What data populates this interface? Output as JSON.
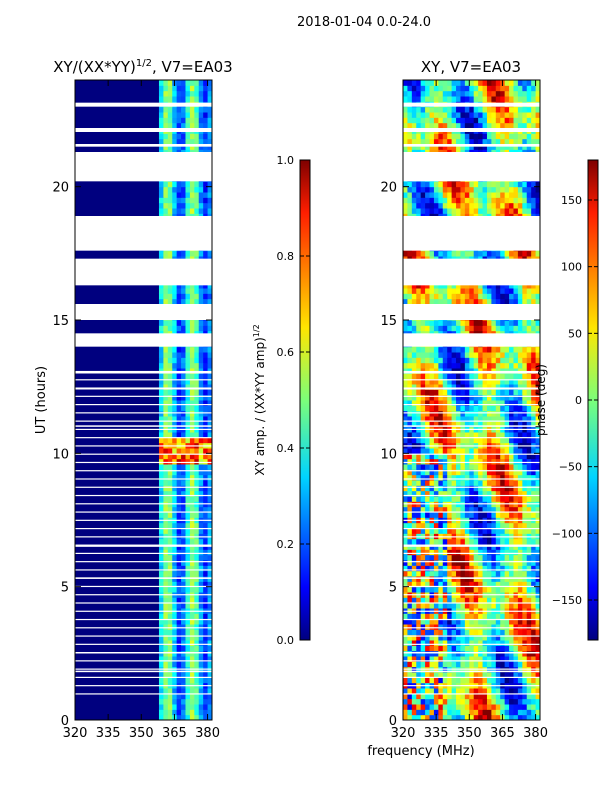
{
  "figure": {
    "suptitle": "2018-01-04 0.0-24.0"
  },
  "chart_data": [
    {
      "type": "heatmap",
      "id": "left",
      "title": "XY/(XX*YY)",
      "title_sup": "1/2",
      "title_suffix": ", V7=EA03",
      "xlabel": "",
      "ylabel": "UT (hours)",
      "xlim": [
        320,
        382
      ],
      "ylim": [
        0,
        24
      ],
      "xticks": [
        320,
        335,
        350,
        365,
        380
      ],
      "yticks": [
        0,
        5,
        10,
        15,
        20
      ],
      "colorbar": {
        "label": "XY amp. / (XX*YY amp)",
        "label_sup": "1/2",
        "range": [
          0.0,
          1.0
        ],
        "ticks": [
          "0.0",
          "0.2",
          "0.4",
          "0.6",
          "0.8",
          "1.0"
        ]
      },
      "colormap": "jet",
      "note": "Mostly low amplitude (~0.0) below 359 MHz; moderate amplitude (0.2-0.6) in bands 359-382 MHz; peak ~0.9 near 9.7-10.5 UT in 360-380 MHz."
    },
    {
      "type": "heatmap",
      "id": "right",
      "title": "XY, V7=EA03",
      "xlabel": "frequency (MHz)",
      "ylabel": "",
      "xlim": [
        320,
        382
      ],
      "ylim": [
        0,
        24
      ],
      "xticks": [
        320,
        335,
        350,
        365,
        380
      ],
      "yticks": [
        0,
        5,
        10,
        15,
        20
      ],
      "colorbar": {
        "label": "phase (deg)",
        "range": [
          -180,
          180
        ],
        "ticks": [
          "-150",
          "-100",
          "-50",
          "0",
          "50",
          "100",
          "150"
        ]
      },
      "colormap": "jet",
      "note": "Phase in degrees, noisy/wrapping structure across the band."
    }
  ],
  "data_gaps_hours": [
    [
      14.0,
      14.5
    ],
    [
      15.0,
      15.6
    ],
    [
      16.3,
      17.3
    ],
    [
      17.6,
      18.9
    ],
    [
      20.2,
      21.3
    ],
    [
      23.0,
      23.15
    ],
    [
      22.05,
      22.2
    ],
    [
      21.5,
      21.6
    ],
    [
      13.0,
      13.05
    ],
    [
      12.4,
      12.45
    ],
    [
      11.0,
      11.05
    ],
    [
      6.5,
      6.55
    ],
    [
      5.3,
      5.35
    ],
    [
      2.5,
      2.55
    ],
    [
      1.8,
      1.85
    ]
  ]
}
